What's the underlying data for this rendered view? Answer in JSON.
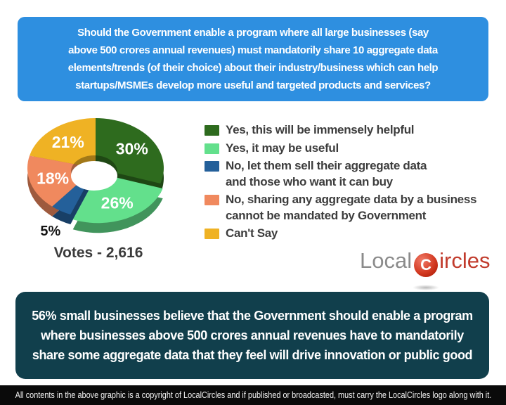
{
  "question": "Should the Government enable a program where all large businesses (say above 500 crores annual revenues) must mandatorily share 10 aggregate data elements/trends (of their choice) about their industry/business which can help startups/MSMEs develop more useful and targeted products and services?",
  "chart_data": {
    "type": "pie",
    "style": "3d-donut",
    "start_angle_deg": 0,
    "direction": "clockwise",
    "votes_label": "Votes - 2,616",
    "slices": [
      {
        "label": "Yes, this will be immensely helpful",
        "value": 30,
        "color": "#2E6B1E"
      },
      {
        "label": "Yes, it may be useful",
        "value": 26,
        "color": "#63E08C",
        "exploded": true
      },
      {
        "label": "No, let them sell their aggregate data\nand those who want it can buy",
        "value": 5,
        "color": "#24609A"
      },
      {
        "label": "No, sharing any aggregate data by a business\ncannot be mandated by Government",
        "value": 18,
        "color": "#F0895E"
      },
      {
        "label": "Can't Say",
        "value": 21,
        "color": "#EFB224"
      }
    ]
  },
  "summary": "56% small businesses believe that the Government should enable a program where businesses above 500 crores annual revenues have to mandatorily share some aggregate data that they feel will drive innovation or public good",
  "footer": "All contents in the above graphic is a copyright of LocalCircles and if published or broadcasted, must carry the LocalCircles logo along with it.",
  "logo": {
    "prefix": "Local",
    "pin_letter": "C",
    "suffix": "ircles"
  },
  "colors": {
    "question_bg": "#2E8FE0",
    "banner_bg": "#113F4C",
    "footer_bg": "#0A0A0A",
    "pie_label": "#FFFFFF",
    "pie_label_outside": "#151515"
  }
}
